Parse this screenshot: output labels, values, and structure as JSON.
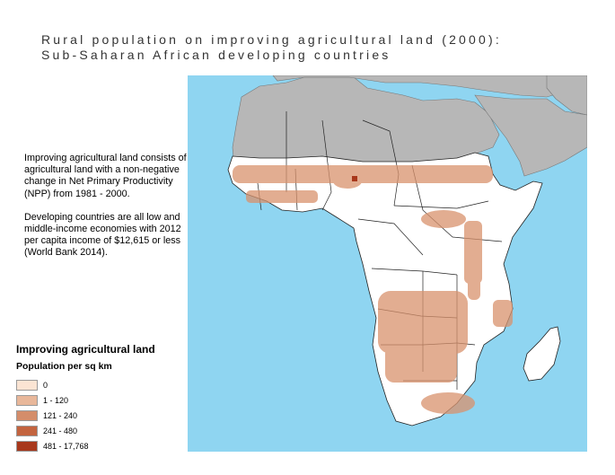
{
  "title": {
    "line1": "Rural population on improving agricultural land (2000):",
    "line2": "Sub-Saharan African developing countries"
  },
  "notes": {
    "paragraph1": "Improving agricultural land consists of agricultural land with a non-negative change in Net Primary Productivity (NPP) from 1981 - 2000.",
    "paragraph2": "Developing countries are all low and middle-income economies with 2012 per capita income of $12,615 or less (World Bank 2014)."
  },
  "legend": {
    "title": "Improving agricultural land",
    "subtitle": "Population per sq km",
    "items": [
      {
        "label": "0",
        "color": "#fbe4d3"
      },
      {
        "label": "1 - 120",
        "color": "#e8b79a"
      },
      {
        "label": "121 - 240",
        "color": "#d48d6a"
      },
      {
        "label": "241 - 480",
        "color": "#c3643f"
      },
      {
        "label": "481 - 17,768",
        "color": "#a8381c"
      }
    ]
  },
  "map": {
    "ocean_color": "#8fd5f1",
    "non_study_land_color": "#b7b7b7",
    "study_land_color": "#ffffff",
    "border_color": "#222222",
    "density_color": "#d9926d"
  }
}
